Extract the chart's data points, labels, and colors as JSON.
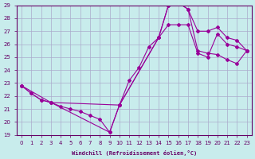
{
  "xlabel": "Windchill (Refroidissement éolien,°C)",
  "bg_color": "#c8ecec",
  "line_color": "#990099",
  "grid_color": "#aaaacc",
  "axis_color": "#660066",
  "xlim": [
    -0.5,
    23.5
  ],
  "ylim": [
    19,
    29
  ],
  "xticks": [
    0,
    1,
    2,
    3,
    4,
    5,
    6,
    7,
    8,
    9,
    10,
    11,
    12,
    13,
    14,
    15,
    16,
    17,
    18,
    19,
    20,
    21,
    22,
    23
  ],
  "yticks": [
    19,
    20,
    21,
    22,
    23,
    24,
    25,
    26,
    27,
    28,
    29
  ],
  "line1_x": [
    0,
    1,
    2,
    3,
    4,
    5,
    6,
    7,
    8,
    9,
    10,
    11,
    12,
    13,
    14,
    15,
    16,
    17,
    18,
    19,
    20,
    21,
    22,
    23
  ],
  "line1_y": [
    22.8,
    22.2,
    21.7,
    21.5,
    21.2,
    21.0,
    20.8,
    20.5,
    20.2,
    19.2,
    21.3,
    23.2,
    24.2,
    25.8,
    26.5,
    29.0,
    29.2,
    28.7,
    27.0,
    27.0,
    27.3,
    26.5,
    26.3,
    25.5
  ],
  "line2_x": [
    0,
    1,
    2,
    3,
    9,
    10,
    14,
    15,
    16,
    17,
    18,
    19,
    20,
    21,
    22,
    23
  ],
  "line2_y": [
    22.8,
    22.2,
    21.7,
    21.5,
    19.2,
    21.3,
    26.5,
    29.0,
    29.2,
    28.7,
    25.5,
    25.3,
    25.2,
    24.8,
    24.5,
    25.5
  ],
  "line3_x": [
    0,
    3,
    10,
    14,
    15,
    16,
    17,
    18,
    19,
    20,
    21,
    22,
    23
  ],
  "line3_y": [
    22.8,
    21.5,
    21.3,
    26.5,
    27.5,
    27.5,
    27.5,
    25.3,
    25.0,
    26.8,
    26.0,
    25.8,
    25.5
  ]
}
